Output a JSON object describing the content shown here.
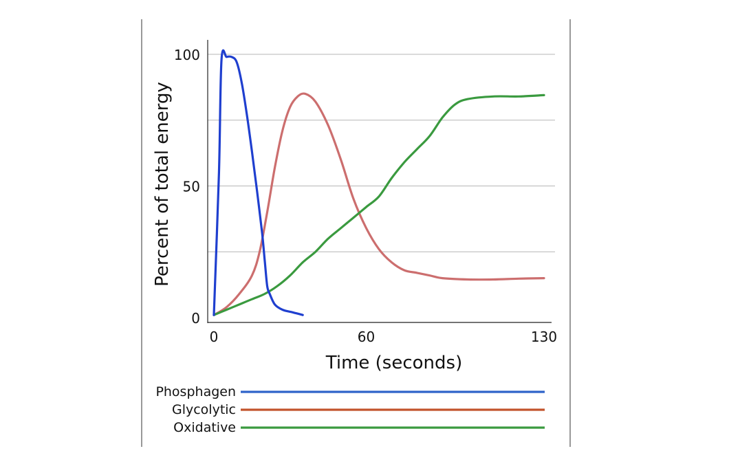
{
  "chart_data": {
    "type": "line",
    "xlabel": "Time (seconds)",
    "ylabel": "Percent of total energy",
    "xlim": [
      0,
      130
    ],
    "ylim": [
      0,
      100
    ],
    "x_ticks": [
      "0",
      "60",
      "130"
    ],
    "y_ticks": [
      "0",
      "50",
      "100"
    ],
    "grid": "horizontal",
    "legend_position": "below",
    "series": [
      {
        "name": "Phosphagen",
        "color": "#1f3fcf",
        "legend_color": "#2e63c9",
        "x": [
          0,
          2,
          3,
          5,
          7,
          9,
          11,
          13,
          15,
          17,
          19,
          20,
          21,
          22,
          24,
          27,
          31,
          35
        ],
        "y": [
          1,
          55,
          98,
          99,
          99,
          97,
          89,
          77,
          63,
          48,
          32,
          22,
          12,
          9,
          5,
          3,
          2,
          1
        ]
      },
      {
        "name": "Glycolytic",
        "color": "#cc6e6e",
        "legend_color": "#c2532b",
        "x": [
          0,
          5,
          10,
          15,
          18,
          21,
          24,
          27,
          30,
          33,
          36,
          40,
          45,
          50,
          55,
          60,
          65,
          70,
          75,
          80,
          85,
          90,
          100,
          110,
          120,
          130
        ],
        "y": [
          1,
          4,
          9,
          16,
          25,
          40,
          57,
          71,
          80,
          84,
          85,
          82,
          73,
          60,
          45,
          34,
          26,
          21,
          18,
          17,
          16,
          15,
          14.5,
          14.5,
          14.8,
          15
        ]
      },
      {
        "name": "Oxidative",
        "color": "#3a9a3f",
        "legend_color": "#3a9a3f",
        "x": [
          0,
          5,
          10,
          15,
          20,
          25,
          30,
          35,
          40,
          45,
          50,
          55,
          60,
          65,
          70,
          75,
          80,
          85,
          90,
          95,
          100,
          110,
          120,
          130
        ],
        "y": [
          1,
          3,
          5,
          7,
          9,
          12,
          16,
          21,
          25,
          30,
          34,
          38,
          42,
          46,
          53,
          59,
          64,
          69,
          76,
          81,
          83,
          84,
          84,
          84.5
        ]
      }
    ]
  }
}
